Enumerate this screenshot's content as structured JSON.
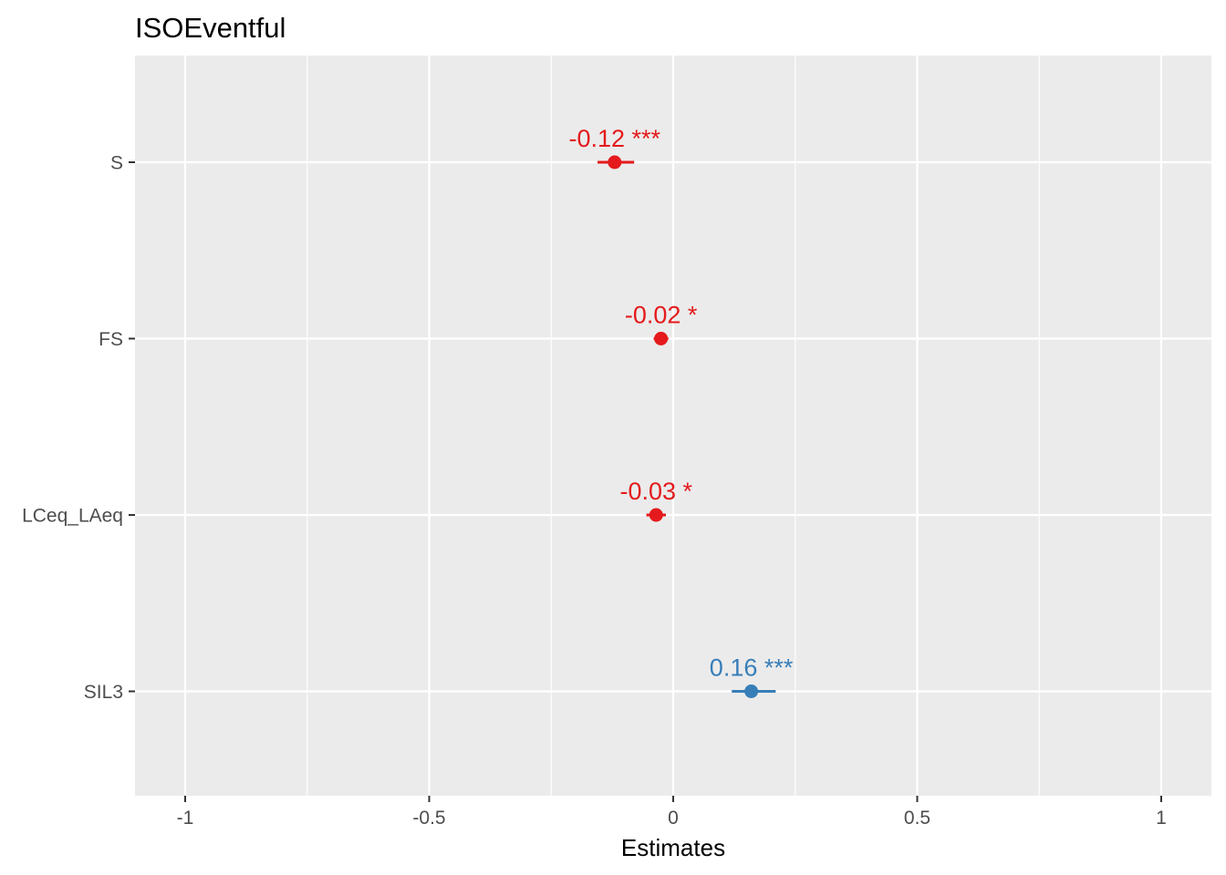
{
  "chart_data": {
    "type": "forest",
    "title": "ISOEventful",
    "xlabel": "Estimates",
    "ylabel": "",
    "xlim": [
      -1.1,
      1.1
    ],
    "x_ticks": [
      {
        "value": -1,
        "label": "-1"
      },
      {
        "value": -0.5,
        "label": "-0.5"
      },
      {
        "value": 0,
        "label": "0"
      },
      {
        "value": 0.5,
        "label": "0.5"
      },
      {
        "value": 1,
        "label": "1"
      }
    ],
    "x_minor_ticks": [
      -0.75,
      -0.25,
      0.25,
      0.75
    ],
    "grid": true,
    "terms": [
      {
        "name": "S",
        "estimate": -0.12,
        "ci_low": -0.155,
        "ci_high": -0.08,
        "label": "-0.12 ***",
        "color": "#E41A1C"
      },
      {
        "name": "FS",
        "estimate": -0.025,
        "ci_low": -0.04,
        "ci_high": -0.01,
        "label": "-0.02 *",
        "color": "#E41A1C"
      },
      {
        "name": "LCeq_LAeq",
        "estimate": -0.035,
        "ci_low": -0.055,
        "ci_high": -0.015,
        "label": "-0.03 *",
        "color": "#E41A1C"
      },
      {
        "name": "SIL3",
        "estimate": 0.16,
        "ci_low": 0.12,
        "ci_high": 0.21,
        "label": "0.16 ***",
        "color": "#377EB8"
      }
    ]
  }
}
